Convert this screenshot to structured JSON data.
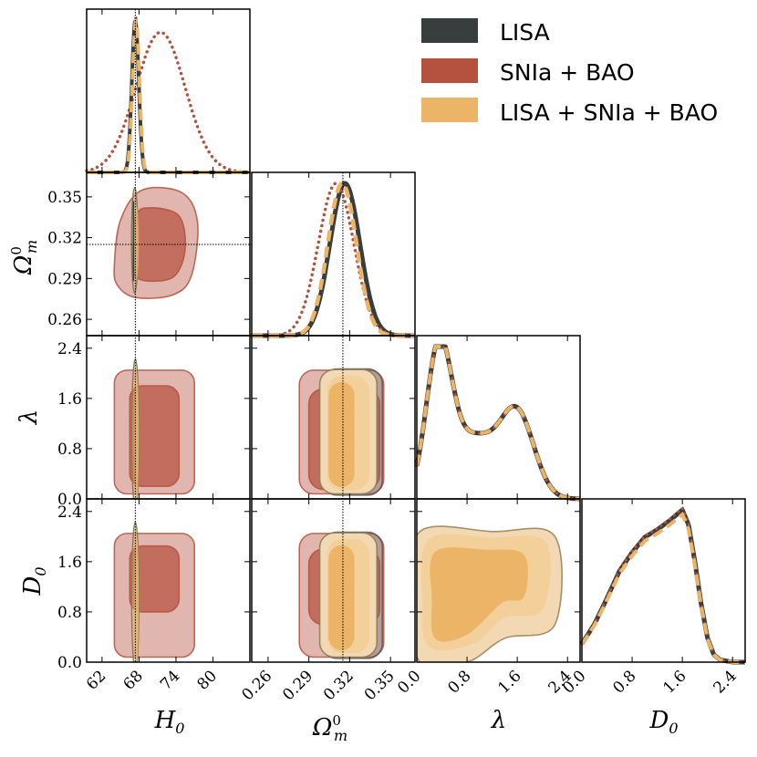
{
  "chart_data": {
    "type": "corner",
    "parameters": [
      "H_0",
      "Omega_m^0",
      "lambda",
      "D_0"
    ],
    "axis_labels": {
      "H0": {
        "base": "H",
        "sub": "0",
        "sup": ""
      },
      "Om": {
        "base": "Ω",
        "sub": "m",
        "sup": "0"
      },
      "lam": {
        "base": "λ",
        "sub": "",
        "sup": ""
      },
      "D0": {
        "base": "D",
        "sub": "0",
        "sup": ""
      }
    },
    "ranges": {
      "H0": [
        59.5,
        86
      ],
      "Om": [
        0.248,
        0.368
      ],
      "lam": [
        0,
        2.6
      ],
      "D0": [
        0,
        2.6
      ]
    },
    "ticks": {
      "H0": [
        62,
        68,
        74,
        80
      ],
      "Om": [
        0.26,
        0.29,
        0.32,
        0.35
      ],
      "lam": [
        0.0,
        0.8,
        1.6,
        2.4
      ],
      "D0": [
        0.0,
        0.8,
        1.6,
        2.4
      ]
    },
    "tick_labels": {
      "H0": [
        "62",
        "68",
        "74",
        "80"
      ],
      "Om": [
        "0.26",
        "0.29",
        "0.32",
        "0.35"
      ],
      "lam": [
        "0.0",
        "0.8",
        "1.6",
        "2.4"
      ],
      "D0": [
        "0.0",
        "0.8",
        "1.6",
        "2.4"
      ]
    },
    "truth": {
      "H0": 67.4,
      "Om": 0.315
    },
    "series": [
      {
        "name": "LISA",
        "color": "#373e3d",
        "line": "solid"
      },
      {
        "name": "SNIa + BAO",
        "color": "#b5513f",
        "line": "dotted"
      },
      {
        "name": "LISA + SNIa + BAO",
        "color": "#ebb467",
        "line": "dashed"
      }
    ],
    "marginals": {
      "H0": {
        "LISA": {
          "mean": 67.4,
          "sigma": 0.55
        },
        "SNIa + BAO": {
          "mean": 71.5,
          "sigma": 4.0
        },
        "LISA + SNIa + BAO": {
          "mean": 67.5,
          "sigma": 0.55
        }
      },
      "Om": {
        "LISA": {
          "mean": 0.3165,
          "sigma": 0.011
        },
        "SNIa + BAO": {
          "mean": 0.31,
          "sigma": 0.013
        },
        "LISA + SNIa + BAO": {
          "mean": 0.3145,
          "sigma": 0.0105
        }
      },
      "lam": {
        "peaks": [
          [
            0.35,
            0.2,
            1.0
          ],
          [
            1.6,
            0.27,
            0.58
          ]
        ],
        "bumps": [
          [
            0.9,
            0.35,
            0.42
          ]
        ]
      },
      "D0": {
        "x": [
          0.0,
          0.2,
          0.4,
          0.6,
          0.8,
          1.0,
          1.2,
          1.4,
          1.6,
          1.7,
          1.8,
          1.9,
          2.0,
          2.1,
          2.2,
          2.4,
          2.6
        ],
        "y": [
          0.12,
          0.25,
          0.42,
          0.6,
          0.72,
          0.82,
          0.87,
          0.93,
          1.0,
          0.9,
          0.66,
          0.38,
          0.16,
          0.05,
          0.015,
          0.0,
          0.0
        ]
      }
    }
  },
  "legend": {
    "entries": [
      "LISA",
      "SNIa + BAO",
      "LISA + SNIa + BAO"
    ]
  }
}
